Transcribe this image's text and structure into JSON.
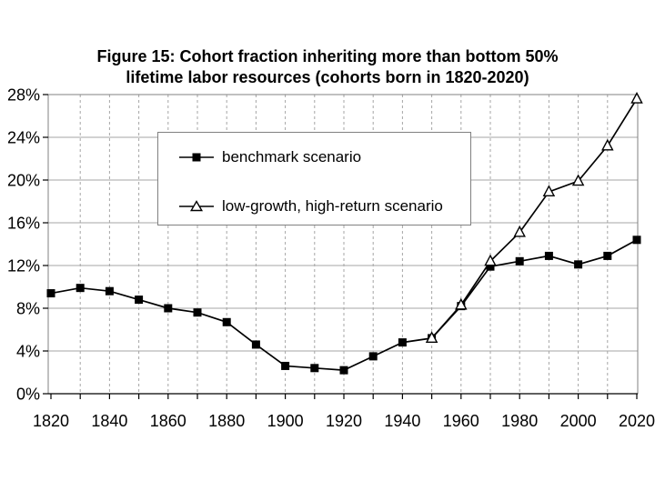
{
  "chart_data": {
    "type": "line",
    "title_line1": "Figure 15: Cohort fraction inheriting more than bottom 50%",
    "title_line2": "lifetime labor resources (cohorts born in 1820-2020)",
    "xlim": [
      1820,
      2020
    ],
    "ylim": [
      0,
      28
    ],
    "x_tick_labels": [
      "1820",
      "1840",
      "1860",
      "1880",
      "1900",
      "1920",
      "1940",
      "1960",
      "1980",
      "2000",
      "2020"
    ],
    "x_minor_ticks": [
      1820,
      1830,
      1840,
      1850,
      1860,
      1870,
      1880,
      1890,
      1900,
      1910,
      1920,
      1930,
      1940,
      1950,
      1960,
      1970,
      1980,
      1990,
      2000,
      2010,
      2020
    ],
    "y_ticks": [
      0,
      4,
      8,
      12,
      16,
      20,
      24,
      28
    ],
    "y_tick_labels": [
      "0%",
      "4%",
      "8%",
      "12%",
      "16%",
      "20%",
      "24%",
      "28%"
    ],
    "grid": {
      "horizontal": "solid",
      "vertical": "dashed"
    },
    "legend": {
      "position": "inside-top-left",
      "border": true
    },
    "colors": {
      "series": "#000000",
      "grid": "#a6a6a6",
      "frame": "#808080",
      "axis": "#000000"
    },
    "series": [
      {
        "name": "benchmark scenario",
        "marker": "filled-square",
        "color": "#000000",
        "x": [
          1820,
          1830,
          1840,
          1850,
          1860,
          1870,
          1880,
          1890,
          1900,
          1910,
          1920,
          1930,
          1940,
          1950,
          1960,
          1970,
          1980,
          1990,
          2000,
          2010,
          2020
        ],
        "values": [
          9.4,
          9.9,
          9.6,
          8.8,
          8.0,
          7.6,
          6.7,
          4.6,
          2.6,
          2.4,
          2.2,
          3.5,
          4.8,
          5.2,
          8.2,
          11.9,
          12.4,
          12.9,
          12.1,
          12.9,
          14.4
        ]
      },
      {
        "name": "low-growth, high-return scenario",
        "marker": "open-triangle",
        "color": "#000000",
        "x": [
          1950,
          1960,
          1970,
          1980,
          1990,
          2000,
          2010,
          2020
        ],
        "values": [
          5.2,
          8.3,
          12.4,
          15.1,
          18.9,
          19.9,
          23.2,
          27.6
        ]
      }
    ]
  }
}
